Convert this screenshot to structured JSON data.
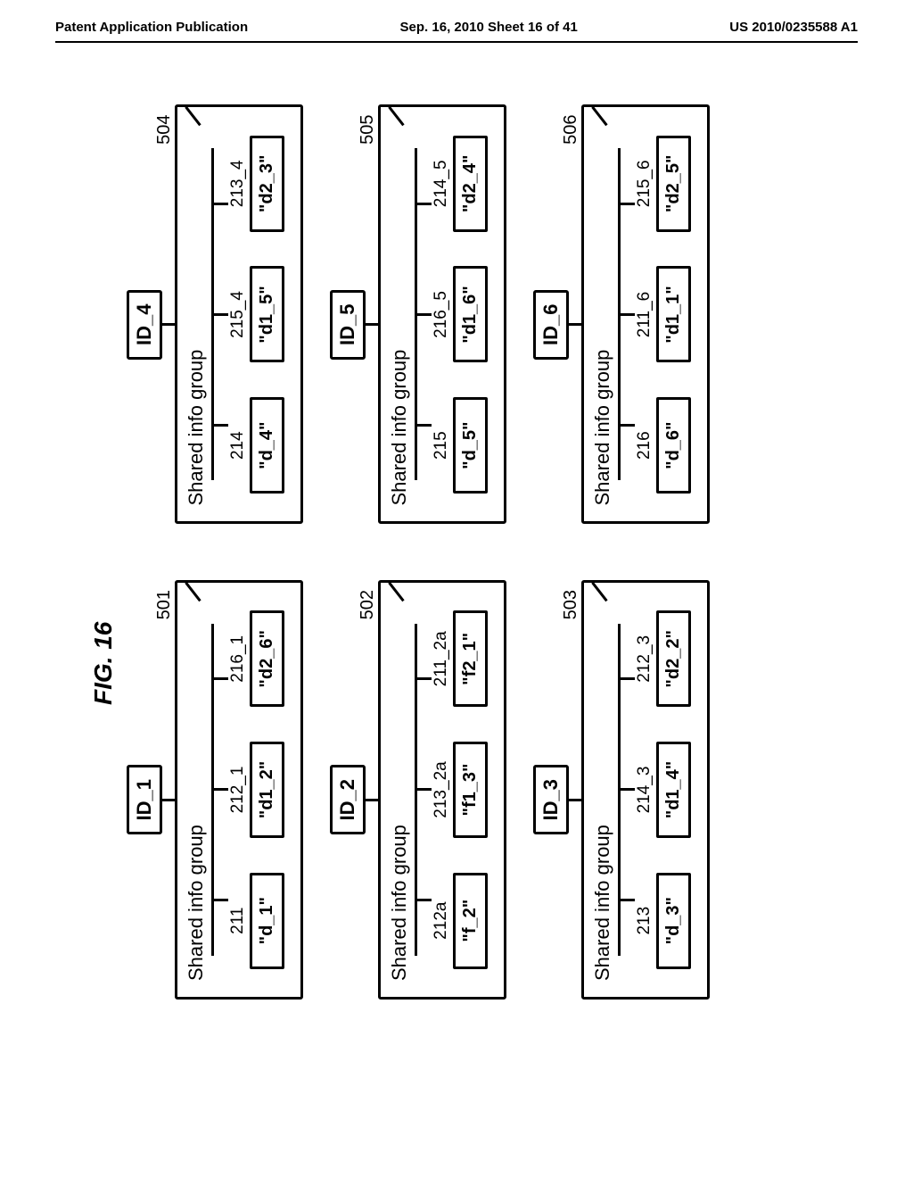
{
  "header": {
    "left": "Patent Application Publication",
    "center": "Sep. 16, 2010  Sheet 16 of 41",
    "right": "US 2010/0235588 A1"
  },
  "figure_label": "FIG. 16",
  "colors": {
    "stroke": "#000000",
    "background": "#ffffff"
  },
  "stroke_width": 3,
  "font": {
    "family": "Arial, Helvetica, sans-serif",
    "label_size_pt": 16,
    "header_size_pt": 11,
    "fig_label_size_pt": 21
  },
  "groups": [
    {
      "id_label": "ID_1",
      "group_ref": "501",
      "title": "Shared info group",
      "items": [
        {
          "ref": "211",
          "val": "\"d_1\""
        },
        {
          "ref": "212_1",
          "val": "\"d1_2\""
        },
        {
          "ref": "216_1",
          "val": "\"d2_6\""
        }
      ]
    },
    {
      "id_label": "ID_4",
      "group_ref": "504",
      "title": "Shared info group",
      "items": [
        {
          "ref": "214",
          "val": "\"d_4\""
        },
        {
          "ref": "215_4",
          "val": "\"d1_5\""
        },
        {
          "ref": "213_4",
          "val": "\"d2_3\""
        }
      ]
    },
    {
      "id_label": "ID_2",
      "group_ref": "502",
      "title": "Shared info group",
      "items": [
        {
          "ref": "212a",
          "val": "\"f_2\""
        },
        {
          "ref": "213_2a",
          "val": "\"f1_3\""
        },
        {
          "ref": "211_2a",
          "val": "\"f2_1\""
        }
      ]
    },
    {
      "id_label": "ID_5",
      "group_ref": "505",
      "title": "Shared info group",
      "items": [
        {
          "ref": "215",
          "val": "\"d_5\""
        },
        {
          "ref": "216_5",
          "val": "\"d1_6\""
        },
        {
          "ref": "214_5",
          "val": "\"d2_4\""
        }
      ]
    },
    {
      "id_label": "ID_3",
      "group_ref": "503",
      "title": "Shared info group",
      "items": [
        {
          "ref": "213",
          "val": "\"d_3\""
        },
        {
          "ref": "214_3",
          "val": "\"d1_4\""
        },
        {
          "ref": "212_3",
          "val": "\"d2_2\""
        }
      ]
    },
    {
      "id_label": "ID_6",
      "group_ref": "506",
      "title": "Shared info group",
      "items": [
        {
          "ref": "216",
          "val": "\"d_6\""
        },
        {
          "ref": "211_6",
          "val": "\"d1_1\""
        },
        {
          "ref": "215_6",
          "val": "\"d2_5\""
        }
      ]
    }
  ]
}
